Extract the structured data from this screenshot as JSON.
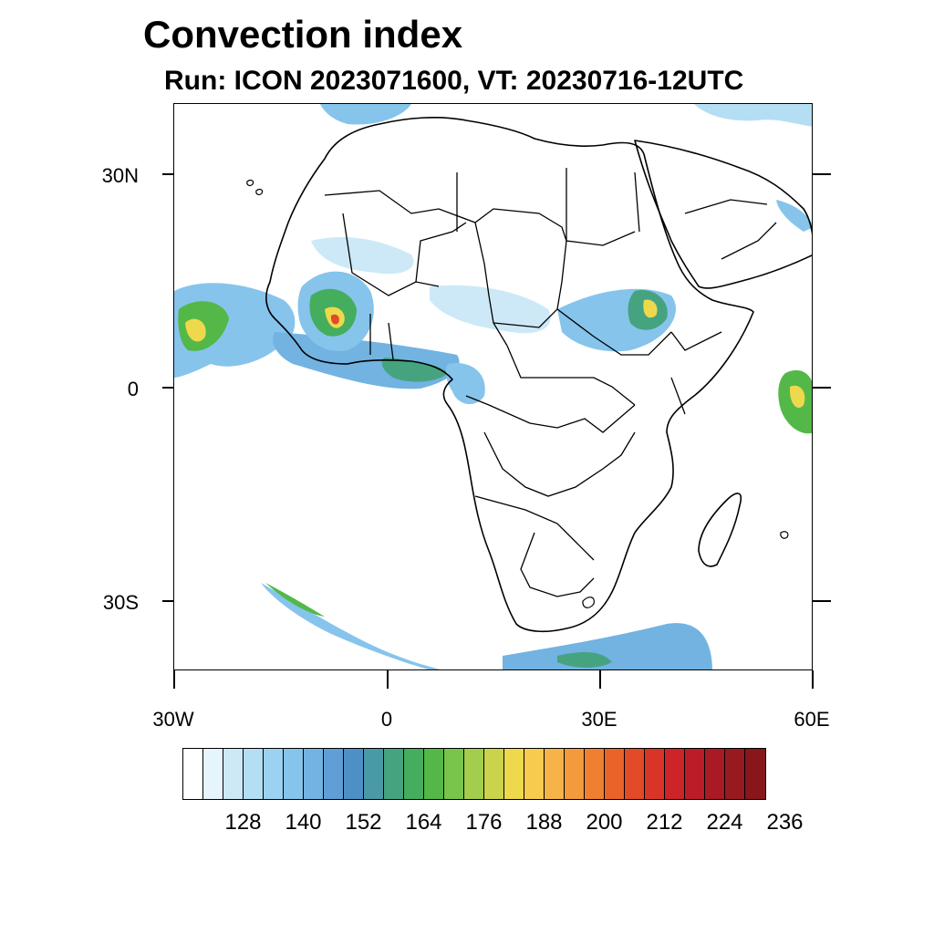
{
  "title": "Convection index",
  "subtitle": "Run: ICON 2023071600,  VT: 20230716-12UTC",
  "map": {
    "lat_labels": [
      "30N",
      "0",
      "30S"
    ],
    "lon_labels": [
      "30W",
      "0",
      "30E",
      "60E"
    ],
    "lon_range": [
      -30,
      60
    ],
    "lat_range": [
      -40,
      40
    ]
  },
  "colorbar": {
    "labels": [
      "128",
      "140",
      "152",
      "164",
      "176",
      "188",
      "200",
      "212",
      "224",
      "236"
    ],
    "colors": [
      "#ffffff",
      "#e6f4fc",
      "#cde9f8",
      "#b4def4",
      "#9bd2f2",
      "#86c4ec",
      "#72b3e2",
      "#5f9ed6",
      "#4e8fc6",
      "#4a99a6",
      "#46a380",
      "#45ad5e",
      "#53b848",
      "#79c44b",
      "#a3cd4c",
      "#cbd24b",
      "#eed94c",
      "#f7cb50",
      "#f5b348",
      "#f39a3c",
      "#ef8031",
      "#ea6429",
      "#e34a27",
      "#da3428",
      "#cc2428",
      "#bb1c27",
      "#a91a24",
      "#971a20",
      "#87171b"
    ]
  }
}
